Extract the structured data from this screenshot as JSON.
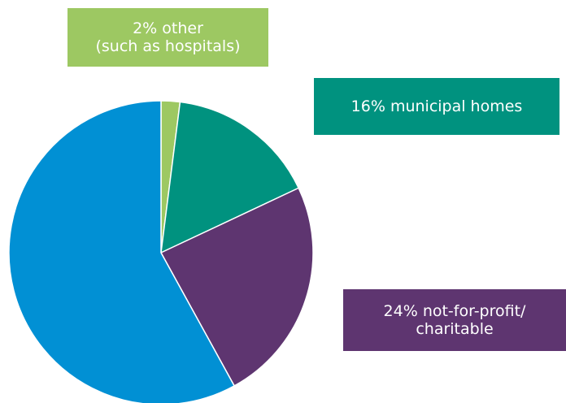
{
  "chart_data": {
    "type": "pie",
    "categories": [
      "2% other\n(such as hospitals)",
      "16% municipal homes",
      "24% not-for-profit/\ncharitable",
      null
    ],
    "values": [
      2,
      16,
      24,
      58
    ],
    "colors": [
      "#9dc862",
      "#00927f",
      "#5e3570",
      "#0190d4"
    ]
  }
}
